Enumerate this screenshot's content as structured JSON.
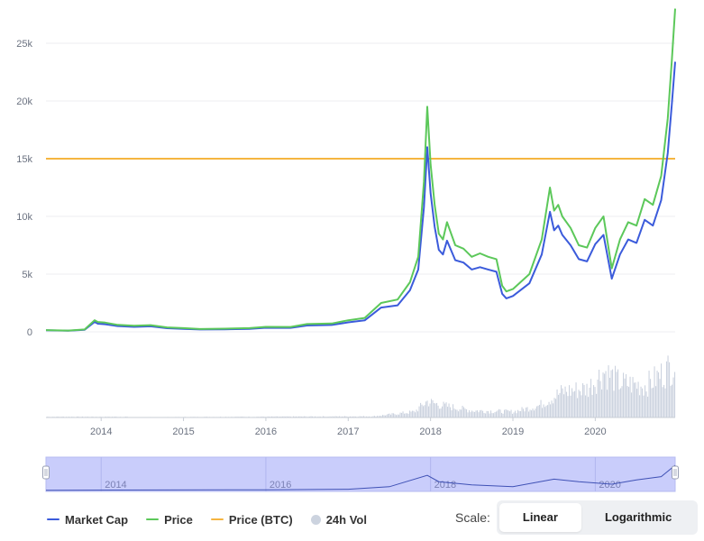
{
  "colors": {
    "market_cap": "#3b5bdb",
    "price": "#5cc85a",
    "price_btc": "#f5b540",
    "volume": "#ccd3df",
    "navigator_fill": "#c9cdfb",
    "grid": "#eceef2",
    "axis_text": "#6b7280"
  },
  "legend": {
    "market_cap": "Market Cap",
    "price": "Price",
    "price_btc": "Price (BTC)",
    "volume": "24h Vol"
  },
  "scale": {
    "label": "Scale:",
    "linear": "Linear",
    "logarithmic": "Logarithmic",
    "selected": "Linear"
  },
  "chart_data": {
    "type": "line",
    "y_ticks": [
      "0",
      "5k",
      "10k",
      "15k",
      "20k",
      "25k"
    ],
    "x_ticks": [
      "2014",
      "2015",
      "2016",
      "2017",
      "2018",
      "2019",
      "2020"
    ],
    "navigator_ticks": [
      "2014",
      "2016",
      "2018",
      "2020"
    ],
    "ylim": [
      0,
      28000
    ],
    "xlim": [
      2013.33,
      2020.97
    ],
    "grid": true,
    "legend_position": "bottom-left",
    "price_btc_level": 15000,
    "series": [
      {
        "key": "price",
        "name": "Price",
        "x": [
          2013.33,
          2013.6,
          2013.8,
          2013.92,
          2013.96,
          2014.05,
          2014.2,
          2014.4,
          2014.6,
          2014.8,
          2015.0,
          2015.2,
          2015.5,
          2015.8,
          2016.0,
          2016.3,
          2016.5,
          2016.8,
          2017.0,
          2017.2,
          2017.4,
          2017.6,
          2017.75,
          2017.85,
          2017.92,
          2017.96,
          2018.0,
          2018.05,
          2018.1,
          2018.15,
          2018.2,
          2018.3,
          2018.4,
          2018.5,
          2018.6,
          2018.7,
          2018.8,
          2018.87,
          2018.92,
          2019.0,
          2019.2,
          2019.35,
          2019.45,
          2019.5,
          2019.55,
          2019.6,
          2019.7,
          2019.8,
          2019.9,
          2020.0,
          2020.1,
          2020.2,
          2020.3,
          2020.4,
          2020.5,
          2020.6,
          2020.7,
          2020.8,
          2020.88,
          2020.93,
          2020.97
        ],
        "values": [
          150,
          110,
          200,
          1000,
          850,
          800,
          600,
          520,
          580,
          380,
          320,
          240,
          270,
          320,
          430,
          420,
          670,
          720,
          1000,
          1200,
          2500,
          2800,
          4300,
          6500,
          13000,
          19500,
          14500,
          11000,
          8500,
          8000,
          9500,
          7500,
          7200,
          6500,
          6800,
          6500,
          6300,
          4000,
          3500,
          3700,
          5000,
          8000,
          12500,
          10500,
          11000,
          10000,
          9000,
          7500,
          7300,
          9000,
          10000,
          5500,
          8000,
          9500,
          9200,
          11500,
          11000,
          13500,
          18500,
          23500,
          28000
        ]
      },
      {
        "key": "market_cap",
        "name": "Market Cap",
        "x": [
          2013.33,
          2013.6,
          2013.8,
          2013.92,
          2013.96,
          2014.05,
          2014.2,
          2014.4,
          2014.6,
          2014.8,
          2015.0,
          2015.2,
          2015.5,
          2015.8,
          2016.0,
          2016.3,
          2016.5,
          2016.8,
          2017.0,
          2017.2,
          2017.4,
          2017.6,
          2017.75,
          2017.85,
          2017.92,
          2017.96,
          2018.0,
          2018.05,
          2018.1,
          2018.15,
          2018.2,
          2018.3,
          2018.4,
          2018.5,
          2018.6,
          2018.7,
          2018.8,
          2018.87,
          2018.92,
          2019.0,
          2019.2,
          2019.35,
          2019.45,
          2019.5,
          2019.55,
          2019.6,
          2019.7,
          2019.8,
          2019.9,
          2020.0,
          2020.1,
          2020.2,
          2020.3,
          2020.4,
          2020.5,
          2020.6,
          2020.7,
          2020.8,
          2020.88,
          2020.93,
          2020.97
        ],
        "values": [
          130,
          100,
          180,
          850,
          700,
          660,
          500,
          430,
          480,
          310,
          260,
          200,
          220,
          260,
          350,
          340,
          550,
          590,
          820,
          990,
          2100,
          2300,
          3600,
          5400,
          10800,
          16000,
          12000,
          9100,
          7100,
          6700,
          7900,
          6200,
          6000,
          5400,
          5600,
          5400,
          5200,
          3300,
          2900,
          3100,
          4200,
          6700,
          10400,
          8800,
          9200,
          8400,
          7500,
          6300,
          6100,
          7600,
          8400,
          4600,
          6700,
          8000,
          7700,
          9700,
          9200,
          11400,
          15500,
          19700,
          23400
        ]
      }
    ],
    "volume_profile": {
      "x": [
        2013.33,
        2017.3,
        2017.8,
        2017.95,
        2018.1,
        2018.5,
        2019.0,
        2019.3,
        2019.6,
        2019.9,
        2020.1,
        2020.3,
        2020.6,
        2020.8,
        2020.97
      ],
      "level": [
        0.0,
        0.02,
        0.1,
        0.28,
        0.22,
        0.12,
        0.1,
        0.2,
        0.45,
        0.5,
        0.8,
        0.6,
        0.55,
        0.75,
        0.95
      ]
    },
    "navigator_series": {
      "x": [
        2013.33,
        2016.0,
        2017.0,
        2017.5,
        2017.96,
        2018.1,
        2018.5,
        2019.0,
        2019.5,
        2019.8,
        2020.2,
        2020.5,
        2020.8,
        2020.97
      ],
      "level": [
        0.01,
        0.03,
        0.05,
        0.15,
        0.6,
        0.35,
        0.22,
        0.15,
        0.45,
        0.35,
        0.25,
        0.42,
        0.55,
        1.0
      ]
    }
  }
}
